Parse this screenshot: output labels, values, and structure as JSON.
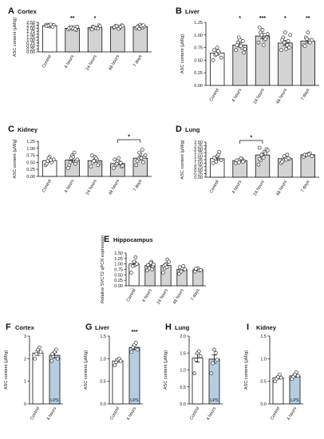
{
  "chart_data": [
    {
      "type": "bar",
      "label": "A",
      "title": "Cortex",
      "ylabel": "ASC content (µM/g)",
      "ylim": [
        0,
        2.5
      ],
      "yticks": [
        "0.00",
        "0.25",
        "0.50",
        "0.75",
        "1.00",
        "1.25",
        "1.50",
        "1.75",
        "2.00",
        "2.25",
        "2.50"
      ],
      "categories": [
        "Control",
        "4 hours",
        "24 hours",
        "48 hours",
        "7 days"
      ],
      "values": [
        2.22,
        2.0,
        2.06,
        2.12,
        2.12
      ],
      "errors": [
        0.05,
        0.06,
        0.06,
        0.05,
        0.06
      ],
      "fills": [
        "#ffffff",
        "#d3d3d3",
        "#d3d3d3",
        "#d3d3d3",
        "#d3d3d3"
      ],
      "significance": [
        "",
        "**",
        "*",
        "",
        ""
      ],
      "points": [
        [
          2.25,
          2.3,
          2.15,
          2.2,
          2.28,
          2.18,
          2.24,
          2.32,
          2.12
        ],
        [
          1.9,
          2.05,
          1.95,
          2.1,
          1.85,
          2.0,
          2.08,
          1.98,
          1.92,
          2.12
        ],
        [
          1.95,
          2.15,
          2.05,
          2.0,
          2.25,
          1.9,
          2.1,
          2.02,
          1.98,
          2.18
        ],
        [
          2.05,
          2.2,
          2.15,
          2.0,
          2.25,
          2.1,
          2.18,
          1.95,
          2.12,
          2.22
        ],
        [
          2.0,
          2.2,
          2.3,
          2.05,
          2.15,
          2.1,
          1.95,
          2.18,
          2.25
        ]
      ]
    },
    {
      "type": "bar",
      "label": "B",
      "title": "Liver",
      "ylabel": "ASC content (µM/g)",
      "ylim": [
        0,
        1.25
      ],
      "yticks": [
        "0.00",
        "0.25",
        "0.50",
        "0.75",
        "1.00",
        "1.25"
      ],
      "categories": [
        "Control",
        "4 hours",
        "24 hours",
        "48 hours",
        "7 days"
      ],
      "values": [
        0.64,
        0.8,
        0.98,
        0.84,
        0.88
      ],
      "errors": [
        0.04,
        0.04,
        0.05,
        0.05,
        0.04
      ],
      "fills": [
        "#ffffff",
        "#d3d3d3",
        "#d3d3d3",
        "#d3d3d3",
        "#d3d3d3"
      ],
      "significance": [
        "",
        "*",
        "***",
        "*",
        "**"
      ],
      "points": [
        [
          0.5,
          0.6,
          0.75,
          0.65,
          0.55,
          0.7,
          0.62,
          0.68
        ],
        [
          0.7,
          0.85,
          0.9,
          0.75,
          0.65,
          0.8,
          0.95,
          0.78,
          0.88,
          0.72
        ],
        [
          0.85,
          1.05,
          1.1,
          0.9,
          0.95,
          1.15,
          1.0,
          0.8,
          0.92,
          1.02
        ],
        [
          0.7,
          0.95,
          1.05,
          0.8,
          0.75,
          0.9,
          0.85,
          0.72,
          0.88,
          1.0
        ],
        [
          0.8,
          0.95,
          1.05,
          0.85,
          0.9,
          0.78,
          0.92
        ]
      ]
    },
    {
      "type": "bar",
      "label": "C",
      "title": "Kidney",
      "ylabel": "ASC content (µM/g)",
      "ylim": [
        0,
        1.25
      ],
      "yticks": [
        "0.00",
        "0.25",
        "0.50",
        "0.75",
        "1.00",
        "1.25"
      ],
      "categories": [
        "Control",
        "4 hours",
        "24 hours",
        "48 hours",
        "7 days"
      ],
      "values": [
        0.56,
        0.58,
        0.56,
        0.46,
        0.65
      ],
      "errors": [
        0.05,
        0.07,
        0.05,
        0.04,
        0.06
      ],
      "fills": [
        "#ffffff",
        "#d3d3d3",
        "#d3d3d3",
        "#d3d3d3",
        "#d3d3d3"
      ],
      "significance": [
        "",
        "",
        "",
        "",
        ""
      ],
      "bracket": {
        "from": 3,
        "to": 4,
        "text": "*"
      },
      "points": [
        [
          0.4,
          0.55,
          0.7,
          0.5,
          0.6,
          0.45,
          0.65,
          0.58
        ],
        [
          0.3,
          0.5,
          0.75,
          0.85,
          0.55,
          0.4,
          0.65,
          0.7,
          0.45,
          0.6
        ],
        [
          0.35,
          0.5,
          0.7,
          0.6,
          0.45,
          0.75,
          0.55,
          0.65,
          0.4
        ],
        [
          0.3,
          0.4,
          0.55,
          0.5,
          0.35,
          0.6,
          0.45,
          0.65,
          0.48,
          0.38
        ],
        [
          0.4,
          0.6,
          0.8,
          0.95,
          0.7,
          0.55,
          0.85,
          0.65,
          0.5,
          0.75
        ]
      ]
    },
    {
      "type": "bar",
      "label": "D",
      "title": "Lung",
      "ylabel": "ASC content (µM/g)",
      "ylim": [
        0,
        2.5
      ],
      "yticks": [
        "0.00",
        "0.25",
        "0.50",
        "0.75",
        "1.00",
        "1.25",
        "1.50",
        "1.75",
        "2.00",
        "2.25",
        "2.50"
      ],
      "categories": [
        "Control",
        "4 hours",
        "24 hours",
        "48 hours",
        "7 days"
      ],
      "values": [
        1.32,
        1.18,
        1.58,
        1.32,
        1.6
      ],
      "errors": [
        0.1,
        0.05,
        0.12,
        0.08,
        0.05
      ],
      "fills": [
        "#ffffff",
        "#d3d3d3",
        "#d3d3d3",
        "#d3d3d3",
        "#d3d3d3"
      ],
      "significance": [
        "",
        "",
        "",
        "",
        ""
      ],
      "bracket": {
        "from": 1,
        "to": 2,
        "text": "*"
      },
      "points": [
        [
          1.0,
          1.3,
          1.5,
          1.8,
          1.2,
          1.4,
          1.1,
          1.6
        ],
        [
          1.0,
          1.1,
          1.25,
          1.3,
          1.15,
          1.2,
          1.05,
          1.35,
          1.1
        ],
        [
          0.9,
          1.2,
          1.5,
          1.8,
          2.0,
          2.1,
          1.6,
          1.4,
          1.7,
          1.9,
          1.3
        ],
        [
          1.0,
          1.2,
          1.4,
          1.6,
          1.3,
          1.1,
          1.5,
          1.25,
          1.35
        ],
        [
          1.45,
          1.55,
          1.65,
          1.7,
          1.5,
          1.6,
          1.58,
          1.62
        ]
      ]
    },
    {
      "type": "bar",
      "label": "E",
      "title": "Hippocampus",
      "ylabel": "Relative SVCT2 qPCR expression",
      "ylim": [
        0,
        1.5
      ],
      "yticks": [
        "0.00",
        "0.25",
        "0.50",
        "0.75",
        "1.00",
        "1.25",
        "1.50"
      ],
      "categories": [
        "Control",
        "4 hours",
        "24 hours",
        "48 hours",
        "7 days"
      ],
      "values": [
        1.0,
        0.93,
        0.93,
        0.75,
        0.74
      ],
      "errors": [
        0.12,
        0.06,
        0.07,
        0.07,
        0.04
      ],
      "fills": [
        "#ffffff",
        "#d3d3d3",
        "#d3d3d3",
        "#d3d3d3",
        "#d3d3d3"
      ],
      "significance": [
        "",
        "",
        "",
        "",
        ""
      ],
      "points": [
        [
          0.6,
          0.9,
          1.1,
          1.3,
          1.0
        ],
        [
          0.7,
          0.85,
          1.0,
          1.1,
          0.9,
          0.95,
          0.8,
          1.05,
          0.75,
          0.98
        ],
        [
          0.6,
          0.8,
          1.0,
          1.2,
          1.1,
          0.9,
          0.95,
          0.85
        ],
        [
          0.55,
          0.7,
          0.8,
          0.9,
          0.75,
          0.85,
          0.65
        ],
        [
          0.65,
          0.75,
          0.8,
          0.7,
          0.72,
          0.78
        ]
      ]
    },
    {
      "type": "bar",
      "label": "F",
      "title": "Cortex",
      "ylabel": "ASC content (µM/g)",
      "ylim": [
        0,
        3
      ],
      "yticks": [
        "0",
        "1",
        "2",
        "3"
      ],
      "categories": [
        "Control",
        "4 hours"
      ],
      "values": [
        2.25,
        2.15
      ],
      "errors": [
        0.1,
        0.12
      ],
      "fills": [
        "#ffffff",
        "#b7cce0"
      ],
      "inbar": [
        "",
        "LPS"
      ],
      "significance": [
        "",
        ""
      ],
      "points": [
        [
          2.0,
          2.2,
          2.4,
          2.5,
          2.3
        ],
        [
          1.9,
          2.1,
          2.3,
          2.4,
          2.0,
          2.2
        ]
      ]
    },
    {
      "type": "bar",
      "label": "G",
      "title": "Liver",
      "ylabel": "ASC content (µM/g)",
      "ylim": [
        0,
        1.5
      ],
      "yticks": [
        "0.0",
        "0.5",
        "1.0",
        "1.5"
      ],
      "categories": [
        "Control",
        "4 hours"
      ],
      "values": [
        0.95,
        1.25
      ],
      "errors": [
        0.03,
        0.05
      ],
      "fills": [
        "#ffffff",
        "#b7cce0"
      ],
      "inbar": [
        "",
        "LPS"
      ],
      "significance": [
        "",
        "***"
      ],
      "points": [
        [
          0.85,
          0.92,
          0.98,
          1.0,
          0.95
        ],
        [
          1.15,
          1.25,
          1.3,
          1.35,
          1.2
        ]
      ]
    },
    {
      "type": "bar",
      "label": "H",
      "title": "Lung",
      "ylabel": "ASC content (µM/g)",
      "ylim": [
        0,
        2
      ],
      "yticks": [
        "0.0",
        "0.5",
        "1.0",
        "1.5",
        "2.0"
      ],
      "categories": [
        "Control",
        "4 hours"
      ],
      "values": [
        1.35,
        1.32
      ],
      "errors": [
        0.12,
        0.12
      ],
      "fills": [
        "#ffffff",
        "#b7cce0"
      ],
      "inbar": [
        "",
        "LPS"
      ],
      "significance": [
        "",
        ""
      ],
      "points": [
        [
          0.9,
          1.3,
          1.5,
          1.55,
          1.4
        ],
        [
          0.9,
          1.2,
          1.6,
          1.5,
          1.3
        ]
      ]
    },
    {
      "type": "bar",
      "label": "I",
      "title": "Kidney",
      "ylabel": "ASC content (µM/g)",
      "ylim": [
        0,
        1.5
      ],
      "yticks": [
        "0.0",
        "0.5",
        "1.0",
        "1.5"
      ],
      "categories": [
        "Control",
        "4 hours"
      ],
      "values": [
        0.58,
        0.62
      ],
      "errors": [
        0.03,
        0.03
      ],
      "fills": [
        "#ffffff",
        "#b7cce0"
      ],
      "inbar": [
        "",
        "LPS"
      ],
      "significance": [
        "",
        ""
      ],
      "points": [
        [
          0.5,
          0.55,
          0.6,
          0.65,
          0.58
        ],
        [
          0.55,
          0.6,
          0.65,
          0.7,
          0.62
        ]
      ]
    }
  ]
}
